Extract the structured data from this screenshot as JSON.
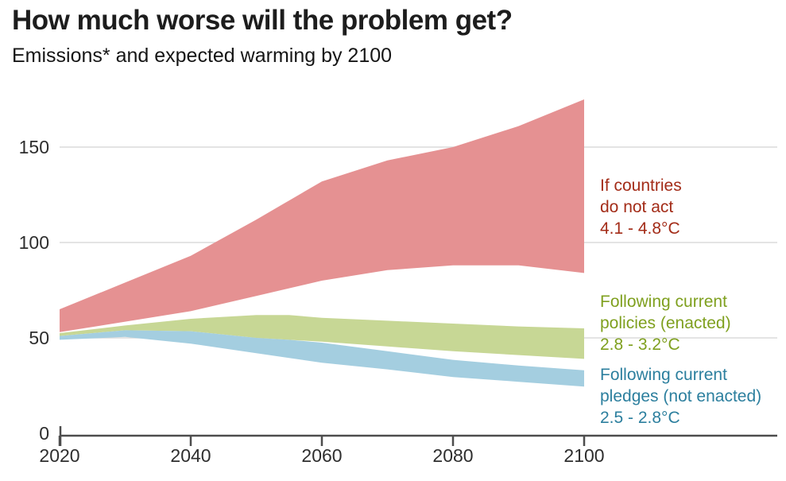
{
  "chart_data": {
    "type": "area",
    "title": "How much worse will the problem get?",
    "subtitle": "Emissions* and expected warming by 2100",
    "x": [
      2020,
      2030,
      2040,
      2050,
      2055,
      2060,
      2070,
      2080,
      2090,
      2100
    ],
    "xlim": [
      2020,
      2100
    ],
    "ylim": [
      0,
      180
    ],
    "grid": "horizontal",
    "legend_position": "right-annotations",
    "series": [
      {
        "name": "If countries do not act",
        "temp_range": "4.1 - 4.8°C",
        "band_color": "#E59192",
        "label_color": "#A32C18",
        "top": [
          65,
          79,
          93,
          112,
          122,
          132,
          143,
          150,
          161,
          175
        ],
        "bottom": [
          53,
          58.5,
          64,
          72,
          76,
          80,
          85.5,
          88,
          88,
          84
        ]
      },
      {
        "name": "Following current policies (enacted)",
        "temp_range": "2.8 - 3.2°C",
        "band_color": "#C7D795",
        "label_color": "#7FA01F",
        "top": [
          52.5,
          56.5,
          60,
          62,
          62,
          60.5,
          59,
          57.5,
          56,
          55
        ],
        "bottom": [
          51,
          54,
          53.5,
          50,
          49,
          48,
          45.5,
          43,
          41,
          39
        ]
      },
      {
        "name": "Following current pledges (not enacted)",
        "temp_range": "2.5 - 2.8°C",
        "band_color": "#A4CEE0",
        "label_color": "#2C7F9E",
        "top": [
          51,
          54,
          53.5,
          50,
          49,
          47.5,
          43,
          38.5,
          35.5,
          33
        ],
        "bottom": [
          49,
          50.5,
          47,
          42,
          39.5,
          37,
          33.5,
          29.5,
          27,
          24.5
        ]
      }
    ],
    "y_axis": {
      "tick_labels": [
        "150",
        "100",
        "50",
        "0"
      ],
      "tick_values": [
        150,
        100,
        50,
        0
      ],
      "gridline_values": [
        150,
        100,
        50
      ]
    },
    "x_axis": {
      "tick_labels": [
        "2020",
        "2040",
        "2060",
        "2080",
        "2100"
      ],
      "tick_values": [
        2020,
        2040,
        2060,
        2080,
        2100
      ]
    },
    "colors": {
      "gridline": "#DBDBDB",
      "axis": "#4D4D4D",
      "title_text": "#1D1D1D",
      "tick_text": "#2E2E2E"
    }
  },
  "annotations": [
    {
      "lines": [
        "If countries",
        "do not act",
        "4.1 - 4.8°C"
      ],
      "color": "#A32C18"
    },
    {
      "lines": [
        "Following current",
        "policies (enacted)",
        "2.8 - 3.2°C"
      ],
      "color": "#7FA01F"
    },
    {
      "lines": [
        "Following current",
        "pledges (not enacted)",
        "2.5 - 2.8°C"
      ],
      "color": "#2C7F9E"
    }
  ]
}
